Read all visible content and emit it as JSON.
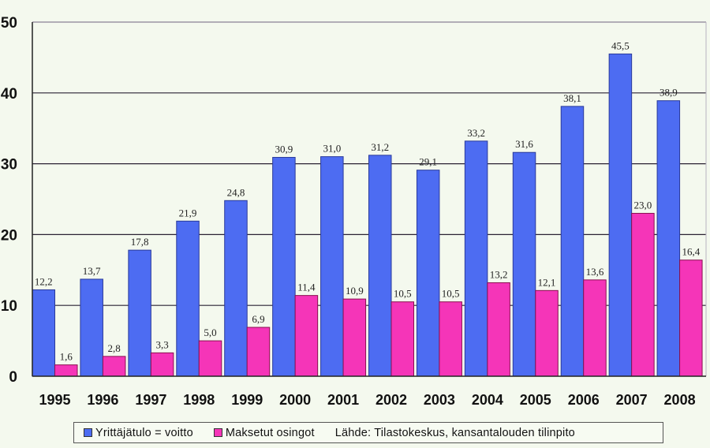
{
  "chart_data": {
    "type": "bar",
    "title": "",
    "xlabel": "",
    "ylabel": "",
    "ylim": [
      0,
      50
    ],
    "yticks": [
      "0",
      "10",
      "20",
      "30",
      "40",
      "50"
    ],
    "grid": true,
    "legend_position": "bottom",
    "categories": [
      "1995",
      "1996",
      "1997",
      "1998",
      "1999",
      "2000",
      "2001",
      "2002",
      "2003",
      "2004",
      "2005",
      "2006",
      "2007",
      "2008"
    ],
    "series": [
      {
        "name": "Yrittäjätulo = voitto",
        "color": "#4d6cf2",
        "values": [
          12.2,
          13.7,
          17.8,
          21.9,
          24.8,
          30.9,
          31.0,
          31.2,
          29.1,
          33.2,
          31.6,
          38.1,
          45.5,
          38.9
        ],
        "labels": [
          "12,2",
          "13,7",
          "17,8",
          "21,9",
          "24,8",
          "30,9",
          "31,0",
          "31,2",
          "29,1",
          "33,2",
          "31,6",
          "38,1",
          "45,5",
          "38,9"
        ]
      },
      {
        "name": "Maksetut osingot",
        "color": "#f535b8",
        "values": [
          1.6,
          2.8,
          3.3,
          5.0,
          6.9,
          11.4,
          10.9,
          10.5,
          10.5,
          13.2,
          12.1,
          13.6,
          23.0,
          16.4
        ],
        "labels": [
          "1,6",
          "2,8",
          "3,3",
          "5,0",
          "6,9",
          "11,4",
          "10,9",
          "10,5",
          "10,5",
          "13,2",
          "12,1",
          "13,6",
          "23,0",
          "16,4"
        ]
      }
    ],
    "source_note": "Lähde: Tilastokeskus, kansantalouden tilinpito"
  }
}
